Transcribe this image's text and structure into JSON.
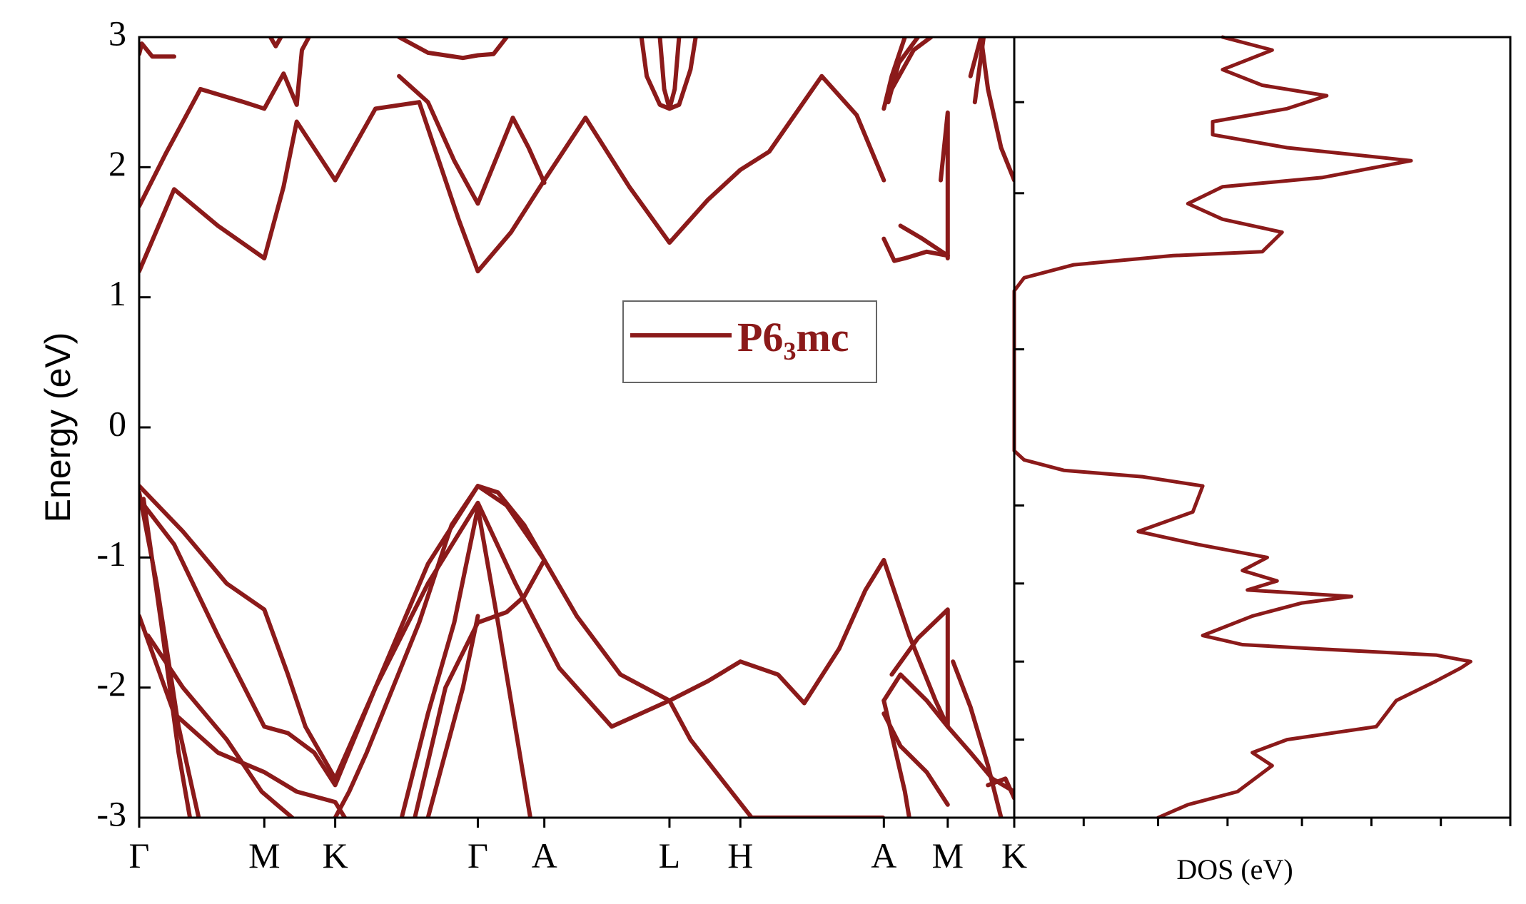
{
  "colors": {
    "band": "#8b1a1a",
    "axis": "#000000",
    "legend_border": "#666666"
  },
  "chart_data": [
    {
      "type": "line",
      "panel": "band-structure",
      "ylabel": "Energy (eV)",
      "ylim": [
        -3,
        3
      ],
      "yticks": [
        "3",
        "2",
        "1",
        "0",
        "-1",
        "-2",
        "-3"
      ],
      "ytick_values": [
        3,
        2,
        1,
        0,
        -1,
        -2,
        -3
      ],
      "xlim": [
        0,
        1
      ],
      "kpoints": [
        {
          "label": "Γ",
          "x": 0.0
        },
        {
          "label": "M",
          "x": 0.143
        },
        {
          "label": "K",
          "x": 0.224
        },
        {
          "label": "Γ",
          "x": 0.387
        },
        {
          "label": "A",
          "x": 0.463
        },
        {
          "label": "L",
          "x": 0.606
        },
        {
          "label": "H",
          "x": 0.687
        },
        {
          "label": "A",
          "x": 0.851
        },
        {
          "label": "M",
          "x": 0.924
        },
        {
          "label": "K",
          "x": 1.0
        }
      ],
      "legend": {
        "label": "P6",
        "subscript": "3",
        "suffix": "mc",
        "placement": "center-right"
      },
      "series": [
        {
          "x": [
            0.0,
            0.04,
            0.09,
            0.143,
            0.165,
            0.18,
            0.224,
            0.27,
            0.32,
            0.365,
            0.387,
            0.425,
            0.463,
            0.51,
            0.56,
            0.606,
            0.65,
            0.687,
            0.72,
            0.78,
            0.82,
            0.851
          ],
          "y": [
            1.2,
            1.83,
            1.55,
            1.3,
            1.85,
            2.35,
            1.9,
            2.45,
            2.5,
            1.6,
            1.2,
            1.5,
            1.9,
            2.38,
            1.85,
            1.42,
            1.75,
            1.98,
            2.12,
            2.7,
            2.4,
            1.9
          ]
        },
        {
          "x": [
            0.851,
            0.863,
            0.875,
            0.9,
            0.924
          ],
          "y": [
            1.45,
            1.28,
            1.3,
            1.35,
            1.32
          ]
        },
        {
          "x": [
            0.0,
            0.03,
            0.07,
            0.12,
            0.143,
            0.165,
            0.18
          ],
          "y": [
            1.7,
            2.1,
            2.6,
            2.5,
            2.45,
            2.72,
            2.48
          ]
        },
        {
          "x": [
            0.18,
            0.186,
            0.194
          ],
          "y": [
            2.48,
            2.9,
            3.0
          ]
        },
        {
          "x": [
            0.0,
            0.003,
            0.015,
            0.04
          ],
          "y": [
            2.87,
            2.95,
            2.85,
            2.85
          ]
        },
        {
          "x": [
            0.15,
            0.156,
            0.162
          ],
          "y": [
            3.0,
            2.93,
            3.0
          ]
        },
        {
          "x": [
            0.297,
            0.33,
            0.36,
            0.387,
            0.41,
            0.427,
            0.445,
            0.463
          ],
          "y": [
            2.7,
            2.5,
            2.05,
            1.72,
            2.1,
            2.38,
            2.15,
            1.88
          ]
        },
        {
          "x": [
            0.297,
            0.33,
            0.37,
            0.387,
            0.405,
            0.42
          ],
          "y": [
            3.0,
            2.88,
            2.84,
            2.86,
            2.87,
            3.0
          ]
        },
        {
          "x": [
            0.574,
            0.58,
            0.595,
            0.606,
            0.617,
            0.63,
            0.636
          ],
          "y": [
            3.0,
            2.7,
            2.48,
            2.45,
            2.48,
            2.75,
            3.0
          ]
        },
        {
          "x": [
            0.595,
            0.6,
            0.606,
            0.612,
            0.617
          ],
          "y": [
            3.0,
            2.6,
            2.45,
            2.6,
            3.0
          ]
        },
        {
          "x": [
            0.851,
            0.86,
            0.875
          ],
          "y": [
            2.45,
            2.7,
            3.0
          ]
        },
        {
          "x": [
            0.856,
            0.868,
            0.89
          ],
          "y": [
            2.5,
            2.8,
            3.0
          ]
        },
        {
          "x": [
            0.86,
            0.885,
            0.905
          ],
          "y": [
            2.6,
            2.9,
            3.0
          ]
        },
        {
          "x": [
            0.87,
            0.895,
            0.924
          ],
          "y": [
            1.55,
            1.45,
            1.32
          ]
        },
        {
          "x": [
            0.916,
            0.924,
            0.924
          ],
          "y": [
            1.9,
            2.42,
            1.3
          ]
        },
        {
          "x": [
            0.95,
            0.962,
            0.97,
            0.985,
            1.0
          ],
          "y": [
            2.7,
            3.0,
            2.6,
            2.15,
            1.9
          ]
        },
        {
          "x": [
            0.955,
            0.965
          ],
          "y": [
            2.5,
            3.0
          ]
        },
        {
          "x": [
            0.0,
            0.05,
            0.1,
            0.143,
            0.17,
            0.19,
            0.224,
            0.27,
            0.33,
            0.387,
            0.42,
            0.463,
            0.5,
            0.55,
            0.606,
            0.65,
            0.687,
            0.73,
            0.76,
            0.8,
            0.83,
            0.851
          ],
          "y": [
            -0.45,
            -0.8,
            -1.2,
            -1.4,
            -1.9,
            -2.3,
            -2.7,
            -2.0,
            -1.05,
            -0.45,
            -0.6,
            -1.02,
            -1.45,
            -1.9,
            -2.1,
            -1.95,
            -1.8,
            -1.9,
            -2.12,
            -1.7,
            -1.25,
            -1.02
          ]
        },
        {
          "x": [
            0.0,
            0.04,
            0.09,
            0.143,
            0.17,
            0.2,
            0.224,
            0.27,
            0.33,
            0.387,
            0.43,
            0.48,
            0.54,
            0.606,
            0.63,
            0.7,
            0.85
          ],
          "y": [
            -0.55,
            -0.9,
            -1.6,
            -2.3,
            -2.35,
            -2.5,
            -2.75,
            -2.0,
            -1.2,
            -0.58,
            -1.2,
            -1.85,
            -2.3,
            -2.1,
            -2.4,
            -3.0,
            -3.0
          ]
        },
        {
          "x": [
            0.0,
            0.02,
            0.045,
            0.068
          ],
          "y": [
            -0.5,
            -1.2,
            -2.3,
            -3.0
          ]
        },
        {
          "x": [
            0.005,
            0.025,
            0.045,
            0.058
          ],
          "y": [
            -0.55,
            -1.5,
            -2.5,
            -3.0
          ]
        },
        {
          "x": [
            0.0,
            0.04,
            0.09,
            0.143,
            0.18,
            0.224,
            0.235
          ],
          "y": [
            -1.45,
            -2.2,
            -2.5,
            -2.65,
            -2.8,
            -2.88,
            -3.0
          ]
        },
        {
          "x": [
            0.01,
            0.05,
            0.1,
            0.14,
            0.175
          ],
          "y": [
            -1.6,
            -2.0,
            -2.4,
            -2.8,
            -3.0
          ]
        },
        {
          "x": [
            0.224,
            0.24,
            0.26,
            0.29,
            0.32,
            0.357,
            0.387,
            0.41,
            0.44,
            0.463
          ],
          "y": [
            -3.0,
            -2.8,
            -2.5,
            -2.0,
            -1.5,
            -0.75,
            -0.45,
            -0.5,
            -0.75,
            -1.02
          ]
        },
        {
          "x": [
            0.3,
            0.33,
            0.36,
            0.387,
            0.41,
            0.447
          ],
          "y": [
            -3.0,
            -2.2,
            -1.5,
            -0.62,
            -1.5,
            -3.0
          ]
        },
        {
          "x": [
            0.315,
            0.35,
            0.387,
            0.42,
            0.44,
            0.463
          ],
          "y": [
            -3.0,
            -2.0,
            -1.5,
            -1.42,
            -1.3,
            -1.02
          ]
        },
        {
          "x": [
            0.33,
            0.37,
            0.387
          ],
          "y": [
            -3.0,
            -2.0,
            -1.45
          ]
        },
        {
          "x": [
            0.851,
            0.87,
            0.9,
            0.924,
            0.95,
            0.975,
            1.0
          ],
          "y": [
            -2.1,
            -1.9,
            -2.1,
            -2.3,
            -2.5,
            -2.7,
            -2.8
          ]
        },
        {
          "x": [
            0.851,
            0.87,
            0.9,
            0.924
          ],
          "y": [
            -2.2,
            -2.45,
            -2.65,
            -2.9
          ]
        },
        {
          "x": [
            0.86,
            0.89,
            0.924,
            0.924
          ],
          "y": [
            -1.9,
            -1.62,
            -1.4,
            -2.3
          ]
        },
        {
          "x": [
            0.851,
            0.88,
            0.91,
            0.924
          ],
          "y": [
            -1.02,
            -1.6,
            -2.1,
            -2.3
          ]
        },
        {
          "x": [
            0.851,
            0.875,
            0.88
          ],
          "y": [
            -2.1,
            -2.8,
            -3.0
          ]
        },
        {
          "x": [
            0.93,
            0.95,
            0.97,
            0.985
          ],
          "y": [
            -1.8,
            -2.15,
            -2.6,
            -3.0
          ]
        },
        {
          "x": [
            0.97,
            0.99,
            1.0
          ],
          "y": [
            -2.75,
            -2.7,
            -2.85
          ]
        }
      ]
    },
    {
      "type": "line",
      "panel": "dos",
      "xlabel": "DOS (eV)",
      "ylim": [
        -3,
        3
      ],
      "xlim": [
        0,
        1
      ],
      "points": [
        [
          0.29,
          -3.0
        ],
        [
          0.35,
          -2.9
        ],
        [
          0.45,
          -2.8
        ],
        [
          0.52,
          -2.6
        ],
        [
          0.48,
          -2.5
        ],
        [
          0.55,
          -2.4
        ],
        [
          0.73,
          -2.3
        ],
        [
          0.77,
          -2.1
        ],
        [
          0.85,
          -1.95
        ],
        [
          0.9,
          -1.85
        ],
        [
          0.92,
          -1.8
        ],
        [
          0.85,
          -1.75
        ],
        [
          0.6,
          -1.7
        ],
        [
          0.46,
          -1.67
        ],
        [
          0.38,
          -1.6
        ],
        [
          0.48,
          -1.45
        ],
        [
          0.58,
          -1.35
        ],
        [
          0.68,
          -1.3
        ],
        [
          0.47,
          -1.25
        ],
        [
          0.53,
          -1.18
        ],
        [
          0.46,
          -1.1
        ],
        [
          0.51,
          -1.0
        ],
        [
          0.37,
          -0.9
        ],
        [
          0.25,
          -0.8
        ],
        [
          0.36,
          -0.65
        ],
        [
          0.38,
          -0.45
        ],
        [
          0.26,
          -0.38
        ],
        [
          0.1,
          -0.33
        ],
        [
          0.02,
          -0.25
        ],
        [
          0.0,
          -0.18
        ],
        [
          0.0,
          1.05
        ],
        [
          0.02,
          1.15
        ],
        [
          0.12,
          1.25
        ],
        [
          0.32,
          1.32
        ],
        [
          0.5,
          1.35
        ],
        [
          0.54,
          1.5
        ],
        [
          0.42,
          1.6
        ],
        [
          0.35,
          1.72
        ],
        [
          0.42,
          1.85
        ],
        [
          0.62,
          1.92
        ],
        [
          0.8,
          2.05
        ],
        [
          0.55,
          2.15
        ],
        [
          0.4,
          2.25
        ],
        [
          0.4,
          2.35
        ],
        [
          0.55,
          2.45
        ],
        [
          0.63,
          2.55
        ],
        [
          0.5,
          2.63
        ],
        [
          0.42,
          2.75
        ],
        [
          0.52,
          2.9
        ],
        [
          0.42,
          3.0
        ]
      ]
    }
  ]
}
